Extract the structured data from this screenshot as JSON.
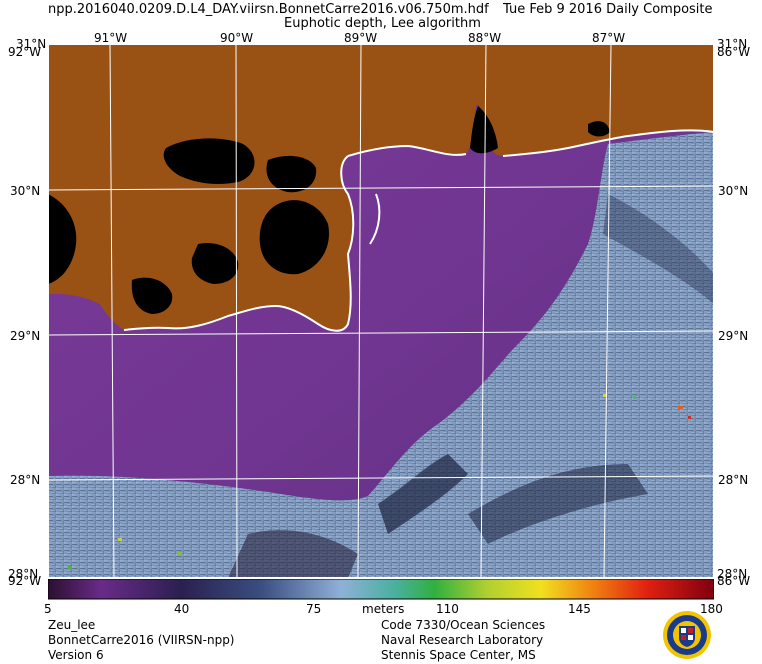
{
  "header": {
    "filename": "npp.2016040.0209.D.L4_DAY.viirsn.BonnetCarre2016.v06.750m.hdf",
    "date": "Tue Feb  9 2016 Daily Composite",
    "product": "Euphotic depth, Lee algorithm"
  },
  "axes": {
    "top_lon": [
      "91°W",
      "90°W",
      "89°W",
      "88°W",
      "87°W"
    ],
    "left_lat": [
      "31°N",
      "30°N",
      "29°N",
      "28°N"
    ],
    "right_lat": [
      "31°N",
      "30°N",
      "29°N",
      "28°N"
    ],
    "corner_top_left": "31°N",
    "corner_top_left_lon": "92°W",
    "corner_top_right_lat": "31°N",
    "corner_top_right_lon": "86°W",
    "corner_bottom_left_lat": "28°N",
    "corner_bottom_left_lon": "92°W",
    "corner_bottom_right_lat": "28°N",
    "corner_bottom_right_lon": "86°W"
  },
  "colorbar": {
    "ticks": [
      "5",
      "40",
      "75",
      "110",
      "145",
      "180"
    ],
    "unit": "meters"
  },
  "footer": {
    "left": [
      "Zeu_lee",
      "BonnetCarre2016 (VIIRSN-npp)",
      "Version 6"
    ],
    "right": [
      "Code 7330/Ocean Sciences",
      "Naval Research Laboratory",
      "Stennis Space Center, MS"
    ]
  },
  "colors": {
    "land": "#9a5214",
    "nodata": "#000000",
    "coastal_water": "#7a3a98",
    "offshore_water": "#8aa6c8",
    "grid": "#ffffff"
  },
  "logo": "naval-research-laboratory-seal"
}
